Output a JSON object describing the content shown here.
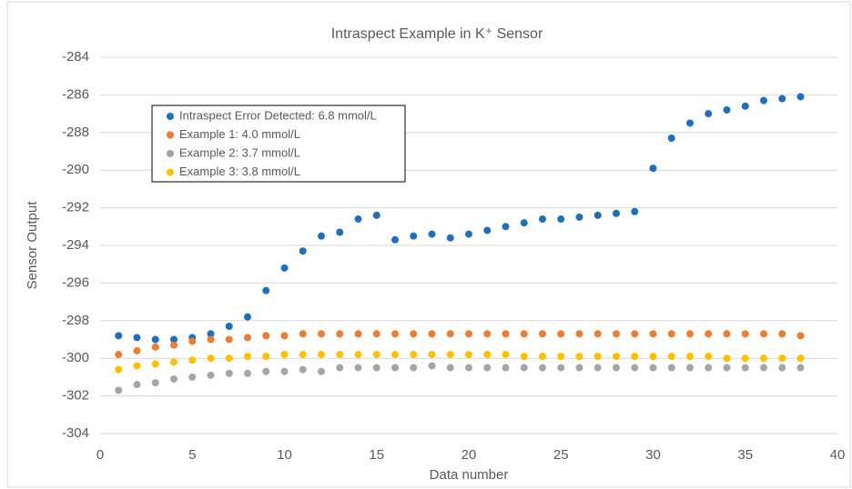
{
  "chart_data": {
    "type": "scatter",
    "title": "Intraspect Example in K⁺ Sensor",
    "x_label": "Data number",
    "y_label": "Sensor Output",
    "x": [
      1,
      2,
      3,
      4,
      5,
      6,
      7,
      8,
      9,
      10,
      11,
      12,
      13,
      14,
      15,
      16,
      17,
      18,
      19,
      20,
      21,
      22,
      23,
      24,
      25,
      26,
      27,
      28,
      29,
      30,
      31,
      32,
      33,
      34,
      35,
      36,
      37,
      38
    ],
    "series": [
      {
        "name": "Intraspect Error Detected: 6.8 mmol/L",
        "color": "#1f6fc0",
        "values": [
          -298.8,
          -298.9,
          -299.0,
          -299.0,
          -298.9,
          -298.7,
          -298.3,
          -297.8,
          -296.4,
          -295.2,
          -294.3,
          -293.5,
          -293.3,
          -292.6,
          -292.4,
          -293.7,
          -293.5,
          -293.4,
          -293.6,
          -293.4,
          -293.2,
          -293.0,
          -292.8,
          -292.6,
          -292.6,
          -292.5,
          -292.4,
          -292.3,
          -292.2,
          -289.9,
          -288.3,
          -287.5,
          -287.0,
          -286.8,
          -286.6,
          -286.3,
          -286.2,
          -286.1
        ]
      },
      {
        "name": "Example 1: 4.0 mmol/L",
        "color": "#ed7d31",
        "values": [
          -299.8,
          -299.6,
          -299.4,
          -299.3,
          -299.1,
          -299.0,
          -299.0,
          -298.9,
          -298.8,
          -298.8,
          -298.7,
          -298.7,
          -298.7,
          -298.7,
          -298.7,
          -298.7,
          -298.7,
          -298.7,
          -298.7,
          -298.7,
          -298.7,
          -298.7,
          -298.7,
          -298.7,
          -298.7,
          -298.7,
          -298.7,
          -298.7,
          -298.7,
          -298.7,
          -298.7,
          -298.7,
          -298.7,
          -298.7,
          -298.7,
          -298.7,
          -298.7,
          -298.8
        ]
      },
      {
        "name": "Example 2: 3.7 mmol/L",
        "color": "#a5a5a5",
        "values": [
          -301.7,
          -301.4,
          -301.3,
          -301.1,
          -301.0,
          -300.9,
          -300.8,
          -300.8,
          -300.7,
          -300.7,
          -300.6,
          -300.7,
          -300.5,
          -300.5,
          -300.5,
          -300.5,
          -300.5,
          -300.4,
          -300.5,
          -300.5,
          -300.5,
          -300.5,
          -300.5,
          -300.5,
          -300.5,
          -300.5,
          -300.5,
          -300.5,
          -300.5,
          -300.5,
          -300.5,
          -300.5,
          -300.5,
          -300.5,
          -300.5,
          -300.5,
          -300.5,
          -300.5
        ]
      },
      {
        "name": "Example 3: 3.8 mmol/L",
        "color": "#ffc000",
        "values": [
          -300.6,
          -300.4,
          -300.3,
          -300.2,
          -300.1,
          -300.0,
          -300.0,
          -299.9,
          -299.9,
          -299.8,
          -299.8,
          -299.8,
          -299.8,
          -299.8,
          -299.8,
          -299.8,
          -299.8,
          -299.8,
          -299.8,
          -299.8,
          -299.8,
          -299.8,
          -299.9,
          -299.9,
          -299.9,
          -299.9,
          -299.9,
          -299.9,
          -299.9,
          -299.9,
          -299.9,
          -299.9,
          -299.9,
          -300.0,
          -300.0,
          -300.0,
          -300.0,
          -300.0
        ]
      }
    ],
    "xlim": [
      0,
      40
    ],
    "xticks": [
      0,
      5,
      10,
      15,
      20,
      25,
      30,
      35,
      40
    ],
    "ylim": [
      -304,
      -284
    ],
    "yticks": [
      -304,
      -302,
      -300,
      -298,
      -296,
      -294,
      -292,
      -290,
      -288,
      -286,
      -284
    ],
    "grid": true
  }
}
